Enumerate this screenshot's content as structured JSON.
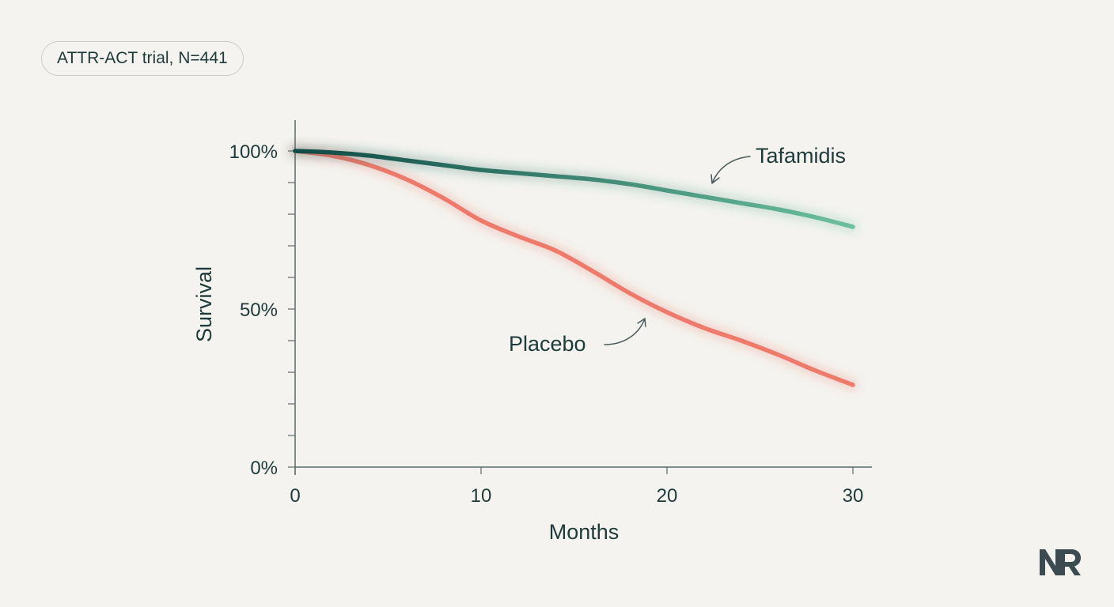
{
  "badge": {
    "text": "ATTR-ACT trial, N=441"
  },
  "colors": {
    "tafamidis_start": "#0f4a44",
    "tafamidis_end": "#6cc0a0",
    "placebo": "#ee7a6c",
    "axis": "#5b6b6b",
    "text": "#1f3a3a"
  },
  "chart_data": {
    "type": "line",
    "xlabel": "Months",
    "ylabel": "Survival",
    "xlim": [
      0,
      30
    ],
    "ylim": [
      0,
      100
    ],
    "x_ticks": [
      "0",
      "10",
      "20",
      "30"
    ],
    "x_tick_values": [
      0,
      10,
      20,
      30
    ],
    "y_ticks": [
      "0%",
      "50%",
      "100%"
    ],
    "y_tick_values": [
      0,
      50,
      100
    ],
    "y_minor_step": 10,
    "grid": false,
    "series": [
      {
        "name": "Tafamidis",
        "x": [
          0,
          2,
          4,
          6,
          8,
          10,
          12,
          14,
          16,
          18,
          20,
          22,
          24,
          26,
          28,
          30
        ],
        "y": [
          100,
          99.5,
          98.5,
          97,
          95.5,
          94,
          93,
          92,
          91,
          89.5,
          87.5,
          85.5,
          83.5,
          81.5,
          79,
          76
        ]
      },
      {
        "name": "Placebo",
        "x": [
          0,
          2,
          4,
          6,
          8,
          10,
          12,
          14,
          16,
          18,
          20,
          22,
          24,
          26,
          28,
          30
        ],
        "y": [
          100,
          98.5,
          95.5,
          91,
          85,
          78,
          73,
          68.5,
          62,
          55,
          49,
          44,
          40,
          35.5,
          30.5,
          26
        ]
      }
    ]
  },
  "logo": {
    "text": "NR"
  }
}
